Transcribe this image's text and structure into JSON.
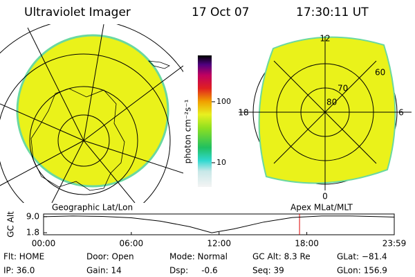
{
  "header": {
    "title": "Ultraviolet Imager",
    "date": "17 Oct 07",
    "time": "17:30:11 UT"
  },
  "colorbar": {
    "label": "photon cm⁻²s⁻¹",
    "log": true,
    "lim": [
      4,
      576
    ],
    "ticks": [
      10,
      100
    ]
  },
  "polar_plot": {
    "mlt_labels": [
      "12",
      "18",
      "6",
      "0"
    ],
    "latitude_labels": [
      80,
      70,
      60
    ]
  },
  "chart_data": {
    "type": "line",
    "left_label": "Geographic Lat/Lon",
    "right_label": "Apex MLat/MLT",
    "ylabel": "GC Alt",
    "x": [
      0,
      2,
      4,
      6,
      8,
      10,
      11.5,
      13,
      15,
      17,
      19,
      21,
      23,
      24
    ],
    "series": [
      {
        "name": "GC Alt",
        "color": "#000000",
        "values": [
          9.0,
          9.3,
          9.1,
          8.5,
          7.0,
          4.5,
          1.8,
          3.5,
          6.5,
          8.6,
          9.3,
          9.3,
          9.0,
          8.8
        ]
      }
    ],
    "xlim": [
      0,
      23.98
    ],
    "xticks": [
      {
        "value": 0,
        "label": "00:00"
      },
      {
        "value": 6,
        "label": "06:00"
      },
      {
        "value": 12,
        "label": "12:00"
      },
      {
        "value": 18,
        "label": "18:00"
      },
      {
        "value": 23.98,
        "label": "23:59"
      }
    ],
    "ylim": [
      0.9,
      10.2
    ],
    "yticks": [
      {
        "value": 9.0,
        "label": "9.0"
      },
      {
        "value": 1.8,
        "label": "1.8"
      }
    ],
    "marker_x": 17.503,
    "marker_color": "#dd0000"
  },
  "status": [
    [
      "Flt: HOME",
      "Door: Open",
      "Mode: Normal",
      "GC Alt: 8.3 Re",
      "GLat: −81.4"
    ],
    [
      "IP: 36.0",
      "Gain: 14",
      "Dsp:     -0.6",
      "Seq: 39",
      "GLon: 156.9"
    ]
  ]
}
